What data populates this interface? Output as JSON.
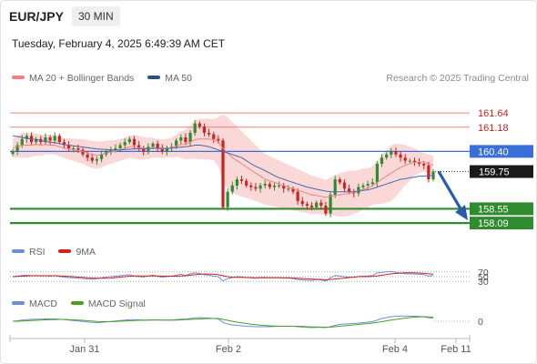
{
  "header": {
    "symbol": "EUR/JPY",
    "timeframe": "30 MIN",
    "datetime": "Tuesday, February 4, 2025 6:49:39 AM CET"
  },
  "legend_main": {
    "ma20": "MA 20 + Bollinger Bands",
    "ma50": "MA 50"
  },
  "credit": "Research © 2025 Trading Central",
  "legend_rsi": {
    "rsi": "RSI",
    "ma": "9MA"
  },
  "legend_macd": {
    "macd": "MACD",
    "signal": "MACD Signal"
  },
  "colors": {
    "bull": "#2e8b2e",
    "bear": "#cc2222",
    "ma20": "#f08080",
    "ma50": "#4a68a8",
    "bb": "#f8c8c8",
    "support": "#2e8b2e",
    "resistance": "#f08080",
    "pivot": "#3a6fd8",
    "arrow": "#2a5ba8"
  },
  "chart_data": [
    {
      "type": "candlestick",
      "ylim": [
        157.8,
        162.2
      ],
      "x_ticks": [
        "Jan 31",
        "Feb 2",
        "Feb 4",
        "Feb 11"
      ],
      "levels": [
        {
          "label": "161.64",
          "value": 161.64,
          "kind": "resistance"
        },
        {
          "label": "161.18",
          "value": 161.18,
          "kind": "resistance"
        },
        {
          "label": "160.40",
          "value": 160.4,
          "kind": "pivot"
        },
        {
          "label": "159.75",
          "value": 159.75,
          "kind": "last"
        },
        {
          "label": "158.55",
          "value": 158.55,
          "kind": "support"
        },
        {
          "label": "158.09",
          "value": 158.09,
          "kind": "support"
        }
      ],
      "closes": [
        160.4,
        160.6,
        160.8,
        160.9,
        160.7,
        160.8,
        160.7,
        160.85,
        160.75,
        160.9,
        160.7,
        160.6,
        160.5,
        160.5,
        160.45,
        160.3,
        160.2,
        160.1,
        160.15,
        160.3,
        160.4,
        160.45,
        160.5,
        160.6,
        160.7,
        160.8,
        160.6,
        160.5,
        160.4,
        160.55,
        160.65,
        160.5,
        160.4,
        160.5,
        160.55,
        160.75,
        160.85,
        160.7,
        161.0,
        161.3,
        161.2,
        161.0,
        160.95,
        160.8,
        160.75,
        158.6,
        159.1,
        159.3,
        159.5,
        159.45,
        159.3,
        159.25,
        159.2,
        159.3,
        159.35,
        159.25,
        159.3,
        159.3,
        159.2,
        159.2,
        159.1,
        158.8,
        158.7,
        158.65,
        158.6,
        158.75,
        158.65,
        158.4,
        159.0,
        159.5,
        159.4,
        159.2,
        159.1,
        159.05,
        159.25,
        159.3,
        159.35,
        159.4,
        160.0,
        160.2,
        160.3,
        160.4,
        160.3,
        160.2,
        160.1,
        160.1,
        160.05,
        160.0,
        159.95,
        159.5,
        159.75
      ],
      "ma20": [
        160.5,
        160.55,
        160.6,
        160.6,
        160.6,
        160.62,
        160.6,
        160.62,
        160.6,
        160.6,
        160.55,
        160.5,
        160.48,
        160.45,
        160.42,
        160.4,
        160.35,
        160.3,
        160.28,
        160.3,
        160.35,
        160.38,
        160.4,
        160.45,
        160.5,
        160.55,
        160.55,
        160.52,
        160.5,
        160.5,
        160.52,
        160.5,
        160.48,
        160.5,
        160.52,
        160.58,
        160.62,
        160.62,
        160.7,
        160.78,
        160.8,
        160.8,
        160.8,
        160.78,
        160.7,
        160.5,
        160.35,
        160.2,
        160.1,
        160.0,
        159.9,
        159.8,
        159.7,
        159.6,
        159.5,
        159.45,
        159.4,
        159.35,
        159.3,
        159.25,
        159.2,
        159.15,
        159.1,
        159.05,
        159.0,
        158.98,
        158.95,
        158.92,
        158.95,
        158.98,
        159.0,
        159.02,
        159.05,
        159.08,
        159.12,
        159.18,
        159.22,
        159.3,
        159.4,
        159.5,
        159.6,
        159.7,
        159.8,
        159.88,
        159.95,
        160.0,
        160.05,
        160.05,
        160.05,
        160.0,
        159.95
      ],
      "ma50": [
        160.9,
        160.88,
        160.85,
        160.82,
        160.8,
        160.78,
        160.75,
        160.72,
        160.7,
        160.68,
        160.65,
        160.62,
        160.6,
        160.58,
        160.56,
        160.54,
        160.52,
        160.5,
        160.48,
        160.47,
        160.46,
        160.45,
        160.45,
        160.45,
        160.46,
        160.47,
        160.48,
        160.48,
        160.48,
        160.49,
        160.5,
        160.5,
        160.5,
        160.5,
        160.5,
        160.52,
        160.54,
        160.55,
        160.57,
        160.6,
        160.6,
        160.58,
        160.55,
        160.5,
        160.45,
        160.4,
        160.35,
        160.3,
        160.25,
        160.2,
        160.1,
        160.0,
        159.92,
        159.85,
        159.78,
        159.7,
        159.62,
        159.55,
        159.5,
        159.45,
        159.4,
        159.35,
        159.3,
        159.25,
        159.22,
        159.18,
        159.15,
        159.12,
        159.1,
        159.1,
        159.1,
        159.1,
        159.1,
        159.1,
        159.12,
        159.14,
        159.16,
        159.2,
        159.25,
        159.3,
        159.35,
        159.4,
        159.45,
        159.5,
        159.52,
        159.55,
        159.57,
        159.6,
        159.6,
        159.62,
        159.62
      ],
      "bb_width": [
        0.3,
        0.35,
        0.4,
        0.4,
        0.38,
        0.36,
        0.34,
        0.32,
        0.3,
        0.3,
        0.3,
        0.32,
        0.34,
        0.36,
        0.38,
        0.4,
        0.42,
        0.44,
        0.44,
        0.42,
        0.4,
        0.38,
        0.36,
        0.35,
        0.35,
        0.36,
        0.38,
        0.38,
        0.36,
        0.34,
        0.32,
        0.3,
        0.3,
        0.3,
        0.32,
        0.36,
        0.42,
        0.48,
        0.55,
        0.62,
        0.65,
        0.66,
        0.66,
        0.66,
        0.8,
        1.1,
        1.15,
        1.15,
        1.1,
        1.05,
        1.0,
        0.95,
        0.9,
        0.85,
        0.82,
        0.8,
        0.78,
        0.76,
        0.74,
        0.72,
        0.7,
        0.68,
        0.66,
        0.64,
        0.62,
        0.6,
        0.58,
        0.56,
        0.6,
        0.66,
        0.7,
        0.72,
        0.72,
        0.7,
        0.68,
        0.66,
        0.64,
        0.62,
        0.7,
        0.8,
        0.85,
        0.9,
        0.85,
        0.75,
        0.65,
        0.55,
        0.45,
        0.35,
        0.3,
        0.3,
        0.3
      ],
      "forecast_arrow": {
        "from": 159.75,
        "to": 158.09
      }
    },
    {
      "type": "line",
      "name": "RSI",
      "y_ticks": [
        "70",
        "50",
        "30"
      ],
      "ylim": [
        0,
        100
      ],
      "rsi": [
        50,
        52,
        55,
        56,
        54,
        55,
        53,
        54,
        52,
        55,
        50,
        48,
        46,
        45,
        44,
        42,
        40,
        39,
        41,
        45,
        48,
        50,
        52,
        54,
        56,
        58,
        52,
        50,
        48,
        53,
        56,
        51,
        48,
        50,
        52,
        56,
        60,
        55,
        62,
        66,
        63,
        58,
        56,
        52,
        50,
        32,
        42,
        46,
        50,
        49,
        46,
        45,
        44,
        46,
        47,
        45,
        46,
        46,
        44,
        44,
        42,
        38,
        36,
        35,
        34,
        38,
        36,
        32,
        45,
        55,
        53,
        50,
        48,
        47,
        51,
        52,
        53,
        55,
        66,
        68,
        70,
        72,
        68,
        65,
        62,
        62,
        61,
        60,
        59,
        52,
        55
      ],
      "ma9": [
        50,
        51,
        52,
        53,
        54,
        54,
        54,
        54,
        54,
        54,
        53,
        52,
        51,
        50,
        48,
        47,
        45,
        44,
        43,
        43,
        43,
        44,
        46,
        48,
        50,
        52,
        53,
        53,
        53,
        53,
        53,
        53,
        52,
        52,
        52,
        52,
        53,
        54,
        56,
        58,
        60,
        61,
        61,
        60,
        58,
        54,
        50,
        48,
        47,
        47,
        46,
        46,
        45,
        45,
        45,
        45,
        45,
        45,
        45,
        45,
        44,
        43,
        42,
        41,
        40,
        39,
        38,
        37,
        38,
        40,
        42,
        44,
        46,
        48,
        50,
        50,
        50,
        51,
        53,
        56,
        59,
        62,
        64,
        65,
        66,
        66,
        66,
        65,
        64,
        62,
        60
      ]
    },
    {
      "type": "line",
      "name": "MACD",
      "y_ticks": [
        "0"
      ],
      "ylim": [
        -0.6,
        0.6
      ],
      "macd": [
        0.0,
        0.02,
        0.05,
        0.07,
        0.08,
        0.09,
        0.09,
        0.1,
        0.1,
        0.1,
        0.09,
        0.07,
        0.05,
        0.03,
        0.01,
        -0.01,
        -0.03,
        -0.05,
        -0.06,
        -0.05,
        -0.03,
        -0.01,
        0.01,
        0.03,
        0.05,
        0.07,
        0.07,
        0.06,
        0.05,
        0.05,
        0.06,
        0.06,
        0.05,
        0.05,
        0.05,
        0.07,
        0.09,
        0.09,
        0.12,
        0.15,
        0.16,
        0.15,
        0.14,
        0.12,
        0.1,
        -0.05,
        -0.12,
        -0.16,
        -0.18,
        -0.2,
        -0.22,
        -0.23,
        -0.24,
        -0.24,
        -0.24,
        -0.24,
        -0.23,
        -0.22,
        -0.22,
        -0.22,
        -0.22,
        -0.24,
        -0.26,
        -0.27,
        -0.28,
        -0.27,
        -0.27,
        -0.28,
        -0.24,
        -0.18,
        -0.14,
        -0.12,
        -0.11,
        -0.1,
        -0.08,
        -0.06,
        -0.04,
        -0.02,
        0.05,
        0.12,
        0.16,
        0.2,
        0.22,
        0.23,
        0.23,
        0.22,
        0.22,
        0.21,
        0.2,
        0.15,
        0.14
      ],
      "signal": [
        0.0,
        0.0,
        0.01,
        0.02,
        0.03,
        0.04,
        0.05,
        0.06,
        0.07,
        0.07,
        0.08,
        0.08,
        0.07,
        0.06,
        0.05,
        0.04,
        0.02,
        0.01,
        -0.01,
        -0.02,
        -0.02,
        -0.02,
        -0.01,
        0.0,
        0.01,
        0.02,
        0.03,
        0.04,
        0.04,
        0.05,
        0.05,
        0.05,
        0.05,
        0.05,
        0.05,
        0.05,
        0.06,
        0.07,
        0.08,
        0.09,
        0.1,
        0.11,
        0.12,
        0.12,
        0.12,
        0.08,
        0.04,
        0.0,
        -0.04,
        -0.07,
        -0.1,
        -0.13,
        -0.15,
        -0.17,
        -0.19,
        -0.2,
        -0.21,
        -0.22,
        -0.22,
        -0.22,
        -0.22,
        -0.22,
        -0.23,
        -0.24,
        -0.25,
        -0.25,
        -0.26,
        -0.26,
        -0.26,
        -0.24,
        -0.22,
        -0.2,
        -0.18,
        -0.16,
        -0.14,
        -0.12,
        -0.1,
        -0.08,
        -0.05,
        -0.02,
        0.02,
        0.05,
        0.08,
        0.11,
        0.14,
        0.16,
        0.18,
        0.19,
        0.2,
        0.19,
        0.18
      ]
    }
  ]
}
